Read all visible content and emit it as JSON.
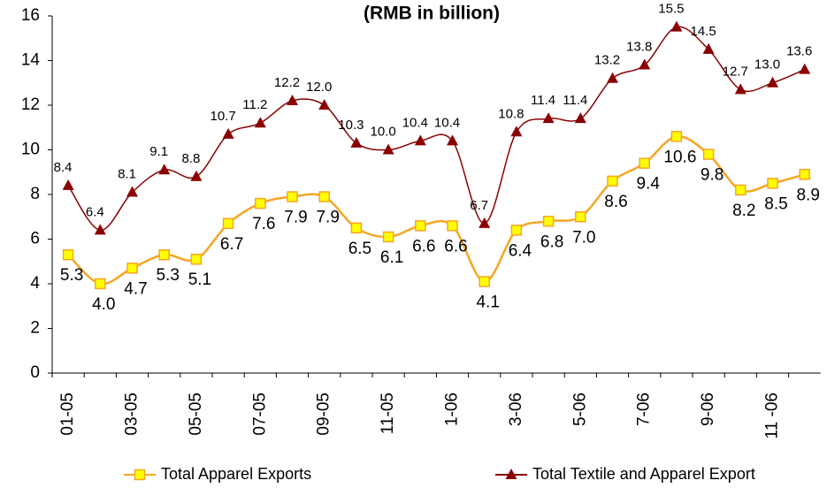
{
  "chart_data": {
    "type": "line",
    "title": "(RMB in billion)",
    "categories": [
      "01-05",
      null,
      "03-05",
      null,
      "05-05",
      null,
      "07-05",
      null,
      "09-05",
      null,
      "11-05",
      null,
      "1-06",
      null,
      "3-06",
      null,
      "5-06",
      null,
      "7-06",
      null,
      "9-06",
      null,
      "11 -06",
      null
    ],
    "series": [
      {
        "name": "Total Apparel Exports",
        "color": "#f5a623",
        "marker_color": "#ffff00",
        "marker": "square",
        "values": [
          5.3,
          4.0,
          4.7,
          5.3,
          5.1,
          6.7,
          7.6,
          7.9,
          7.9,
          6.5,
          6.1,
          6.6,
          6.6,
          4.1,
          6.4,
          6.8,
          7.0,
          8.6,
          9.4,
          10.6,
          9.8,
          8.2,
          8.5,
          8.9
        ],
        "value_labels": [
          "5.3",
          "4.0",
          "4.7",
          "5.3",
          "5.1",
          "6.7",
          "7.6",
          "7.9",
          "7.9",
          "6.5",
          "6.1",
          "6.6",
          "6.6",
          "4.1",
          "6.4",
          "6.8",
          "7.0",
          "8.6",
          "9.4",
          "10.6",
          "9.8",
          "8.2",
          "8.5",
          "8.9"
        ]
      },
      {
        "name": "Total Textile and Apparel Export",
        "color": "#8b0000",
        "marker_color": "#8b0000",
        "marker": "triangle",
        "values": [
          8.4,
          6.4,
          8.1,
          9.1,
          8.8,
          10.7,
          11.2,
          12.2,
          12.0,
          10.3,
          10.0,
          10.4,
          10.4,
          6.7,
          10.8,
          11.4,
          11.4,
          13.2,
          13.8,
          15.5,
          14.5,
          12.7,
          13.0,
          13.6
        ],
        "value_labels": [
          "8.4",
          "6.4",
          "8.1",
          "9.1",
          "8.8",
          "10.7",
          "11.2",
          "12.2",
          "12.0",
          "10.3",
          "10.0",
          "10.4",
          "10.4",
          "6.7",
          "10.8",
          "11.4",
          "11.4",
          "13.2",
          "13.8",
          "15.5",
          "14.5",
          "12.7",
          "13.0",
          "13.6"
        ]
      }
    ],
    "ylim": [
      0,
      16
    ],
    "yticks": [
      0,
      2,
      4,
      6,
      8,
      10,
      12,
      14,
      16
    ],
    "grid": false,
    "smooth": true,
    "legend": "bottom"
  }
}
